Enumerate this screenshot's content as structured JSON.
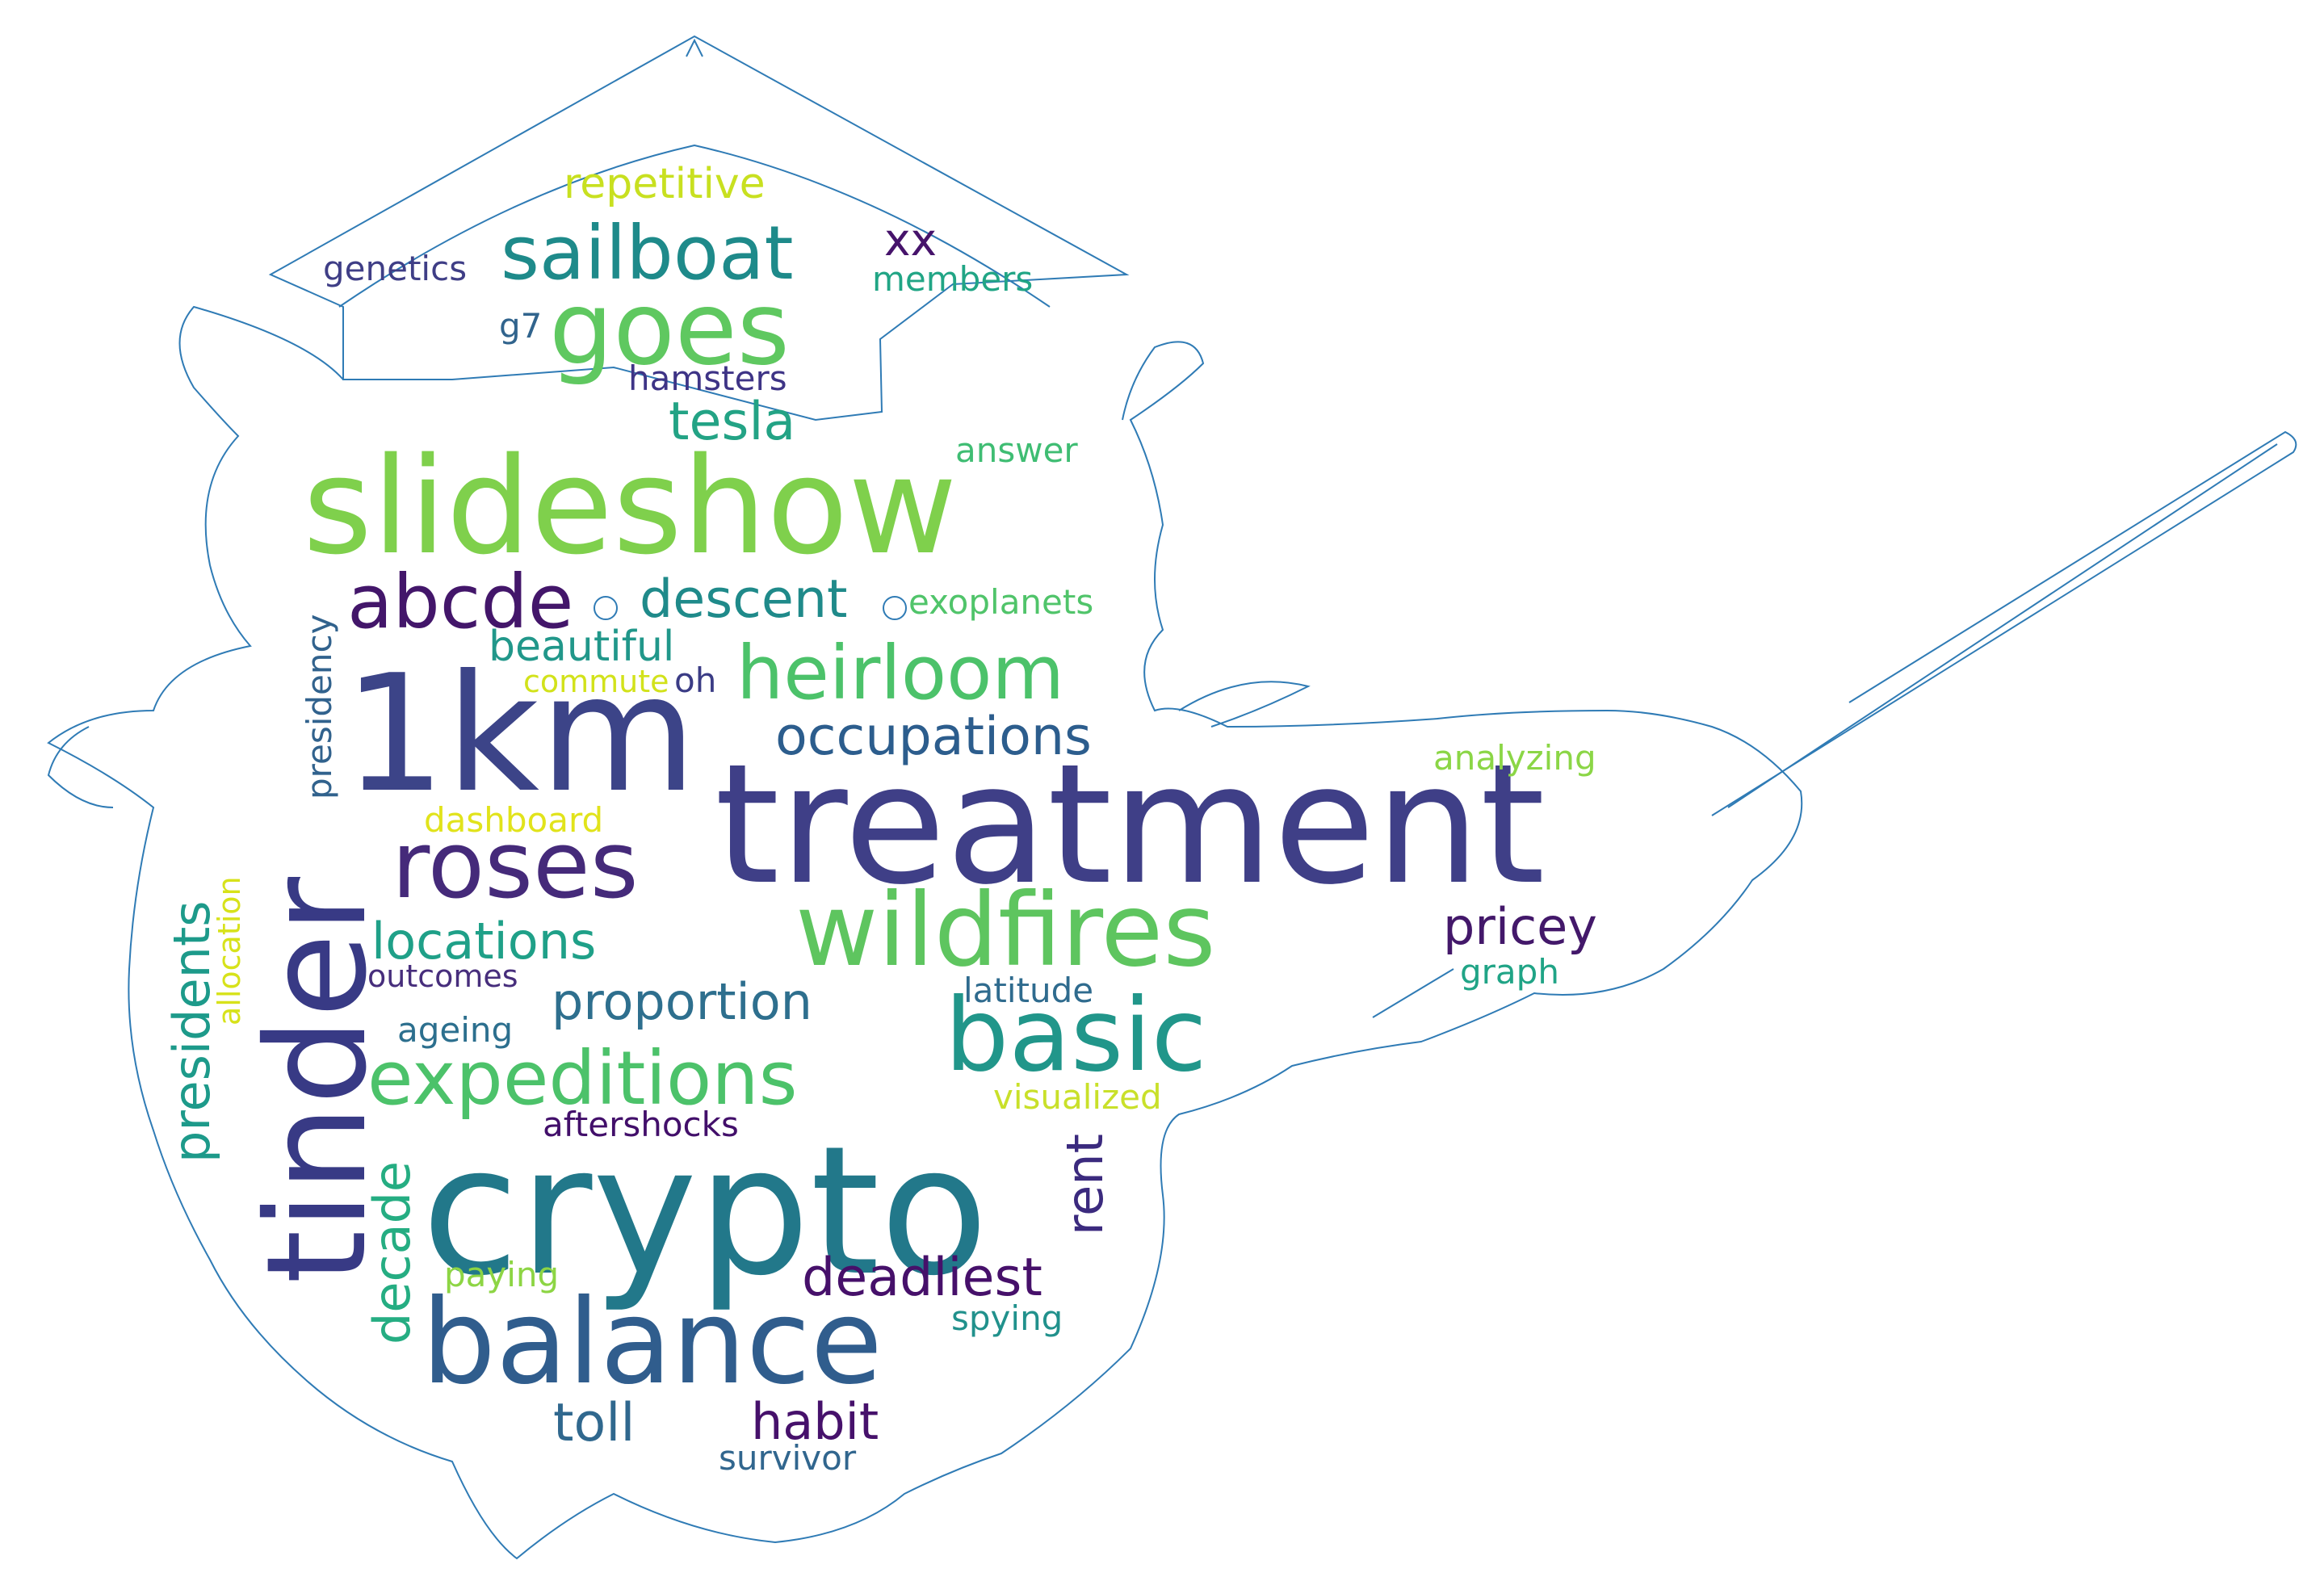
{
  "words": [
    {
      "text": "treatment",
      "color": "#3f3f87"
    },
    {
      "text": "crypto",
      "color": "#22788a"
    },
    {
      "text": "1km",
      "color": "#3c4488"
    },
    {
      "text": "slideshow",
      "color": "#7fd04c"
    },
    {
      "text": "tinder",
      "color": "#383a85"
    },
    {
      "text": "balance",
      "color": "#305d8d"
    },
    {
      "text": "wildfires",
      "color": "#5ec55f"
    },
    {
      "text": "basic",
      "color": "#21968a"
    },
    {
      "text": "goes",
      "color": "#5fc860"
    },
    {
      "text": "roses",
      "color": "#452a7a"
    },
    {
      "text": "heirloom",
      "color": "#4cc26a"
    },
    {
      "text": "sailboat",
      "color": "#1e8a8a"
    },
    {
      "text": "expeditions",
      "color": "#4cc26a"
    },
    {
      "text": "abcde",
      "color": "#43166a"
    },
    {
      "text": "descent",
      "color": "#1f8a8a"
    },
    {
      "text": "occupations",
      "color": "#2c5d8d"
    },
    {
      "text": "locations",
      "color": "#1fa088"
    },
    {
      "text": "proportion",
      "color": "#2e6f8e"
    },
    {
      "text": "pricey",
      "color": "#43186a"
    },
    {
      "text": "deadliest",
      "color": "#46106a"
    },
    {
      "text": "presidents",
      "color": "#1d9a8a"
    },
    {
      "text": "decade",
      "color": "#25ad82"
    },
    {
      "text": "rent",
      "color": "#3b2a7e"
    },
    {
      "text": "tesla",
      "color": "#23a385"
    },
    {
      "text": "beautiful",
      "color": "#21978a"
    },
    {
      "text": "repetitive",
      "color": "#c8e020"
    },
    {
      "text": "toll",
      "color": "#30688e"
    },
    {
      "text": "habit",
      "color": "#46116b"
    },
    {
      "text": "xx",
      "color": "#46136b"
    },
    {
      "text": "presidency",
      "color": "#31628d"
    },
    {
      "text": "members",
      "color": "#21a585"
    },
    {
      "text": "genetics",
      "color": "#3f3e86"
    },
    {
      "text": "hamsters",
      "color": "#3e3486"
    },
    {
      "text": "answer",
      "color": "#3fbd73"
    },
    {
      "text": "exoplanets",
      "color": "#50c46a"
    },
    {
      "text": "commute",
      "color": "#d2e21b"
    },
    {
      "text": "oh",
      "color": "#3b3c85"
    },
    {
      "text": "dashboard",
      "color": "#e1e31b"
    },
    {
      "text": "allocation",
      "color": "#d7e21a"
    },
    {
      "text": "outcomes",
      "color": "#472e7c"
    },
    {
      "text": "latitude",
      "color": "#2f6b8e"
    },
    {
      "text": "ageing",
      "color": "#2c6f8e"
    },
    {
      "text": "visualized",
      "color": "#c9e02a"
    },
    {
      "text": "aftershocks",
      "color": "#420f6a"
    },
    {
      "text": "paying",
      "color": "#8dd544"
    },
    {
      "text": "spying",
      "color": "#21918c"
    },
    {
      "text": "survivor",
      "color": "#31668e"
    },
    {
      "text": "analyzing",
      "color": "#8bd646"
    },
    {
      "text": "graph",
      "color": "#20a486"
    },
    {
      "text": "g7",
      "color": "#31648d"
    }
  ]
}
